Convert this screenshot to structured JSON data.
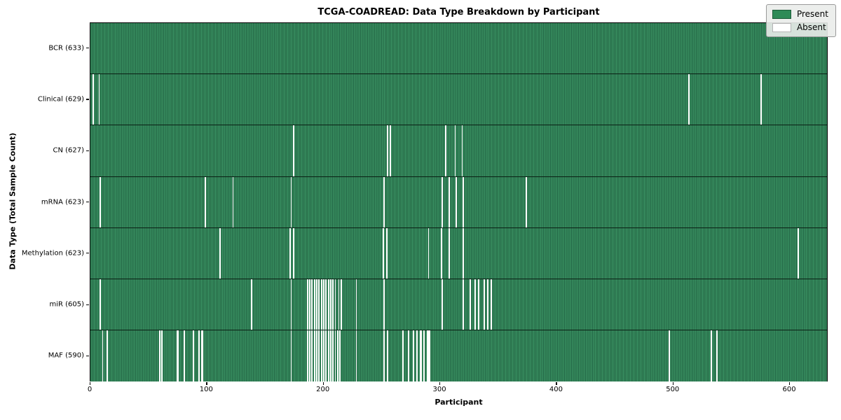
{
  "title": "TCGA-COADREAD: Data Type Breakdown by Participant",
  "xlabel": "Participant",
  "ylabel": "Data Type (Total Sample Count)",
  "legend": {
    "present_label": "Present",
    "absent_label": "Absent"
  },
  "colors": {
    "present": "#2e8b57",
    "present_edge": "#236645",
    "absent": "#ffffff",
    "axis": "#000000",
    "legend_bg": "#eaecea"
  },
  "x_ticks": [
    0,
    100,
    200,
    300,
    400,
    500,
    600
  ],
  "chart_data": {
    "type": "heatmap",
    "title": "TCGA-COADREAD: Data Type Breakdown by Participant",
    "xlabel": "Participant",
    "ylabel": "Data Type (Total Sample Count)",
    "x_range": [
      0,
      633
    ],
    "n_participants": 633,
    "legend": [
      "Present",
      "Absent"
    ],
    "legend_position": "upper right",
    "grid": false,
    "rows": [
      {
        "label": "BCR (633)",
        "data_type": "BCR",
        "total": 633,
        "absent_participants": []
      },
      {
        "label": "Clinical (629)",
        "data_type": "Clinical",
        "total": 629,
        "absent_participants": [
          2,
          7,
          514,
          576
        ]
      },
      {
        "label": "CN (627)",
        "data_type": "CN",
        "total": 627,
        "absent_participants": [
          174,
          255,
          257,
          305,
          313,
          319
        ]
      },
      {
        "label": "mRNA (623)",
        "data_type": "mRNA",
        "total": 623,
        "absent_participants": [
          8,
          98,
          122,
          172,
          252,
          302,
          308,
          314,
          320,
          374
        ]
      },
      {
        "label": "Methylation (623)",
        "data_type": "Methylation",
        "total": 623,
        "absent_participants": [
          111,
          171,
          174,
          251,
          254,
          290,
          301,
          308,
          320,
          608
        ]
      },
      {
        "label": "miR (605)",
        "data_type": "miR",
        "total": 605,
        "absent_participants": [
          8,
          138,
          172,
          186,
          188,
          190,
          192,
          194,
          196,
          198,
          200,
          202,
          204,
          206,
          208,
          210,
          213,
          215,
          228,
          252,
          302,
          320,
          326,
          330,
          333,
          338,
          341,
          344
        ]
      },
      {
        "label": "MAF (590)",
        "data_type": "MAF",
        "total": 590,
        "absent_participants": [
          10,
          14,
          59,
          61,
          74,
          75,
          80,
          88,
          93,
          95,
          96,
          172,
          186,
          188,
          190,
          192,
          194,
          196,
          198,
          200,
          202,
          204,
          206,
          208,
          210,
          212,
          214,
          228,
          252,
          255,
          268,
          273,
          277,
          280,
          283,
          284,
          286,
          289,
          290,
          291,
          497,
          533,
          538
        ]
      }
    ]
  }
}
